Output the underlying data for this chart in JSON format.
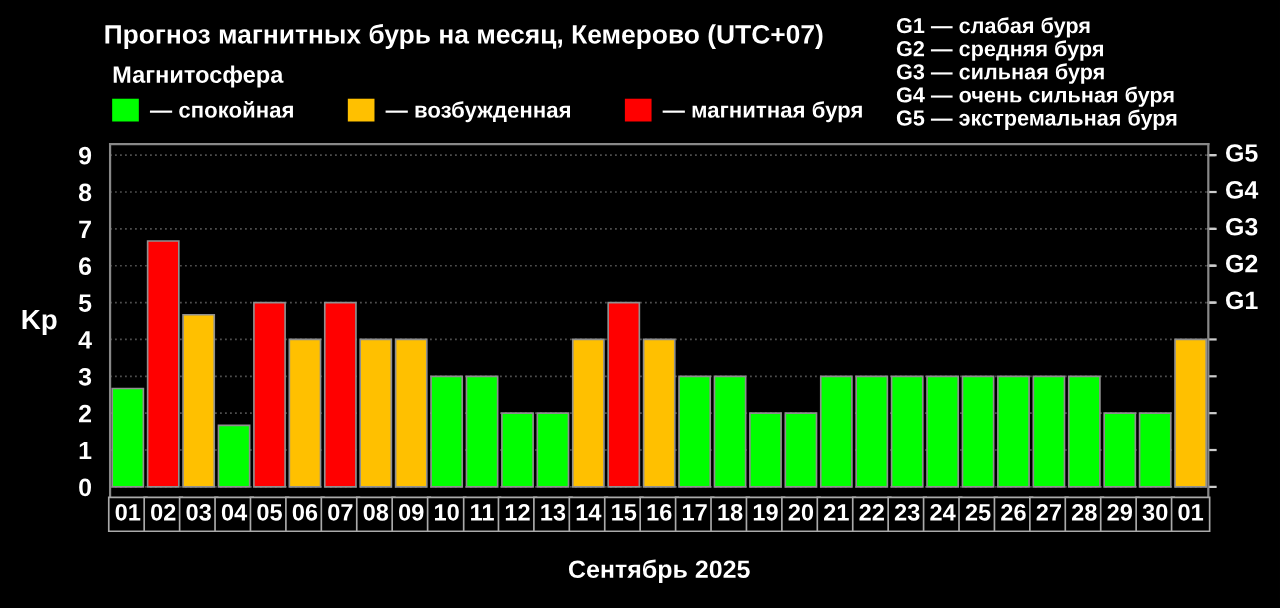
{
  "chart_data": {
    "type": "bar",
    "title": "Прогноз магнитных бурь на месяц, Кемерово (UTC+07)",
    "xlabel": "Сентябрь 2025",
    "ylabel": "Kp",
    "legend_title": "Магнитосфера",
    "categories": [
      "01",
      "02",
      "03",
      "04",
      "05",
      "06",
      "07",
      "08",
      "09",
      "10",
      "11",
      "12",
      "13",
      "14",
      "15",
      "16",
      "17",
      "18",
      "19",
      "20",
      "21",
      "22",
      "23",
      "24",
      "25",
      "26",
      "27",
      "28",
      "29",
      "30",
      "01"
    ],
    "series": [
      {
        "name": "— спокойная",
        "color": "#00ff00",
        "values": [
          2.67,
          null,
          null,
          1.67,
          null,
          null,
          null,
          null,
          null,
          3,
          3,
          2,
          2,
          null,
          null,
          null,
          3,
          3,
          2,
          2,
          3,
          3,
          3,
          3,
          3,
          3,
          3,
          3,
          2,
          2,
          null
        ]
      },
      {
        "name": "— возбужденная",
        "color": "#ffc000",
        "values": [
          null,
          null,
          4.67,
          null,
          null,
          4,
          null,
          4,
          4,
          null,
          null,
          null,
          null,
          4,
          null,
          4,
          null,
          null,
          null,
          null,
          null,
          null,
          null,
          null,
          null,
          null,
          null,
          null,
          null,
          null,
          4
        ]
      },
      {
        "name": "— магнитная буря",
        "color": "#ff0000",
        "values": [
          null,
          6.67,
          null,
          null,
          5,
          null,
          5,
          null,
          null,
          null,
          null,
          null,
          null,
          null,
          5,
          null,
          null,
          null,
          null,
          null,
          null,
          null,
          null,
          null,
          null,
          null,
          null,
          null,
          null,
          null,
          null
        ]
      }
    ],
    "ylim": [
      -0.35,
      9.3
    ],
    "yticks": [
      0,
      1,
      2,
      3,
      4,
      5,
      6,
      7,
      8,
      9
    ],
    "grid": "y",
    "legend": "top",
    "ref_lines": [
      {
        "axis": "y",
        "value": 5,
        "label": "G1",
        "color": "#cccccc"
      },
      {
        "axis": "y",
        "value": 6,
        "label": "G2",
        "color": "#cccccc"
      },
      {
        "axis": "y",
        "value": 7,
        "label": "G3",
        "color": "#cccccc"
      },
      {
        "axis": "y",
        "value": 8,
        "label": "G4",
        "color": "#cccccc"
      },
      {
        "axis": "y",
        "value": 9,
        "label": "G5",
        "color": "#cccccc"
      }
    ],
    "annotations": [
      "G1 — слабая буря",
      "G2 — средняя буря",
      "G3 — сильная буря",
      "G4 — очень сильная буря",
      "G5 — экстремальная буря"
    ]
  }
}
